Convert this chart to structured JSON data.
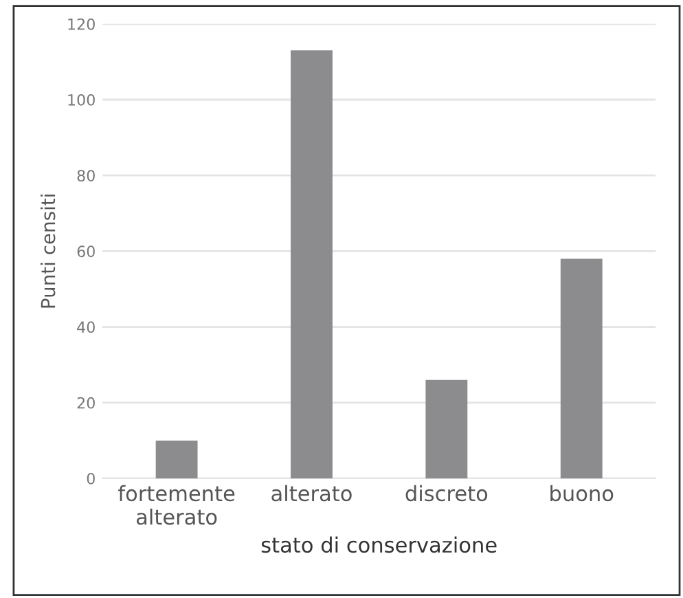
{
  "chart_data": {
    "type": "bar",
    "xlabel": "stato di conservazione",
    "ylabel": "Punti censiti",
    "categories": [
      "fortemente\nalterato",
      "alterato",
      "discreto",
      "buono"
    ],
    "values": [
      10,
      113,
      26,
      58
    ],
    "color": "#8c8c8e",
    "ylim": [
      0,
      120
    ],
    "yticks": [
      0,
      20,
      40,
      60,
      80,
      100,
      120
    ],
    "grid": "y"
  }
}
